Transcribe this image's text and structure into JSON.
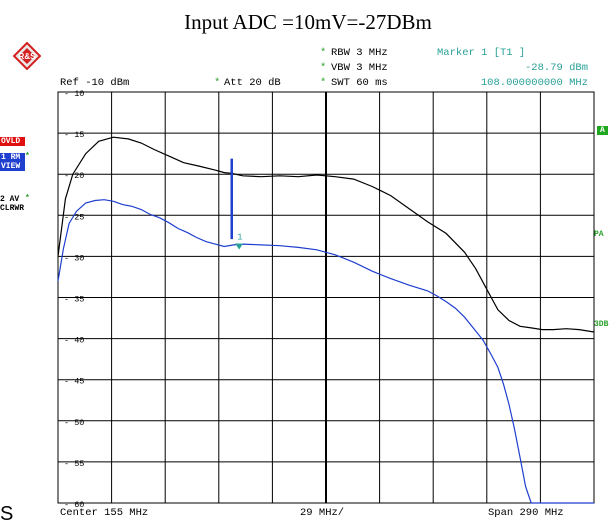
{
  "caption": "Input ADC =10mV=-27DBm",
  "logo": {
    "name": "rohde-schwarz-logo",
    "text": "R&S"
  },
  "header": {
    "rbw": "RBW 3 MHz",
    "vbw": "VBW 3 MHz",
    "swt": "SWT 60 ms",
    "att": "Att  20 dB",
    "ref": "Ref -10 dBm",
    "marker_title": "Marker 1 [T1 ]",
    "marker_level": "-28.79 dBm",
    "marker_freq": "108.000000000 MHz",
    "star": "*"
  },
  "left_panel": {
    "ovld": "OVLD",
    "trace1_line1": "1 RM",
    "trace1_line2": "VIEW",
    "trace2_line1": "2 AV",
    "trace2_line2": "CLRWR",
    "star": "*"
  },
  "right_labels": {
    "a": "A",
    "pa": "PA",
    "db3": "3DB"
  },
  "footer": {
    "center": "Center 155 MHz",
    "per_div": "29 MHz/",
    "span": "Span 290 MHz",
    "corner": "S"
  },
  "colors": {
    "trace1": "#000000",
    "trace2": "#1f3fcf",
    "grid": "#000000",
    "marker_text": "#2aa198",
    "side_green": "#1fa81f",
    "ovld_bg": "#e01010",
    "trace1_bg": "#1f3fcf"
  },
  "chart_data": {
    "type": "line",
    "title": "Input ADC =10mV=-27DBm",
    "xlabel": "",
    "ylabel": "",
    "xlim": [
      10,
      300
    ],
    "ylim": [
      -60,
      -10
    ],
    "x_unit": "MHz",
    "y_unit": "dBm",
    "y_ticks": [
      -10,
      -15,
      -20,
      -25,
      -30,
      -35,
      -40,
      -45,
      -50,
      -55,
      -60
    ],
    "grid": true,
    "series": [
      {
        "name": "1 RM",
        "x": [
          10,
          14,
          18,
          25,
          32,
          40,
          48,
          55,
          62,
          70,
          78,
          86,
          95,
          100,
          104,
          110,
          120,
          130,
          140,
          150,
          160,
          170,
          180,
          190,
          200,
          210,
          220,
          230,
          236,
          242,
          248,
          254,
          260,
          266,
          272,
          278,
          285,
          292,
          300
        ],
        "y": [
          -30,
          -23,
          -20,
          -17.5,
          -16,
          -15.5,
          -15.7,
          -16.2,
          -17,
          -17.8,
          -18.6,
          -19,
          -19.5,
          -19.8,
          -19.9,
          -20.2,
          -20.3,
          -20.2,
          -20.3,
          -20.1,
          -20.3,
          -20.6,
          -21.5,
          -22.6,
          -24.2,
          -25.8,
          -27.2,
          -29.5,
          -31.5,
          -34,
          -36.5,
          -37.8,
          -38.5,
          -38.7,
          -38.9,
          -38.9,
          -38.8,
          -38.9,
          -39.2
        ]
      },
      {
        "name": "2 AV",
        "x": [
          10,
          13,
          16,
          20,
          25,
          30,
          35,
          40,
          45,
          50,
          55,
          60,
          65,
          70,
          75,
          80,
          85,
          90,
          95,
          100,
          105,
          110,
          120,
          130,
          140,
          150,
          160,
          170,
          180,
          190,
          200,
          210,
          215,
          220,
          225,
          230,
          235,
          240,
          244,
          248,
          251,
          254,
          257,
          260,
          263,
          266,
          270,
          280,
          300
        ],
        "y": [
          -33,
          -29,
          -26,
          -24.5,
          -23.5,
          -23.2,
          -23.1,
          -23.3,
          -23.7,
          -23.9,
          -24.3,
          -24.9,
          -25.3,
          -25.9,
          -26.6,
          -27.1,
          -27.7,
          -28.2,
          -28.5,
          -28.8,
          -28.6,
          -28.5,
          -28.6,
          -28.7,
          -28.9,
          -29.2,
          -29.8,
          -30.7,
          -31.8,
          -32.7,
          -33.5,
          -34.2,
          -34.8,
          -35.5,
          -36.3,
          -37.4,
          -38.8,
          -40.2,
          -41.8,
          -43.5,
          -45.5,
          -48,
          -51,
          -54.5,
          -58,
          -61.5,
          -62,
          -62,
          -62
        ]
      }
    ],
    "markers": [
      {
        "label": "1",
        "x": 108,
        "y": -28.79,
        "text": "Marker 1 [T1 ] -28.79 dBm 108.000000000 MHz"
      }
    ],
    "annotations": [
      {
        "type": "vertical-bar",
        "x": 104,
        "y_from": -18.1,
        "y_to": -27.9
      }
    ]
  }
}
